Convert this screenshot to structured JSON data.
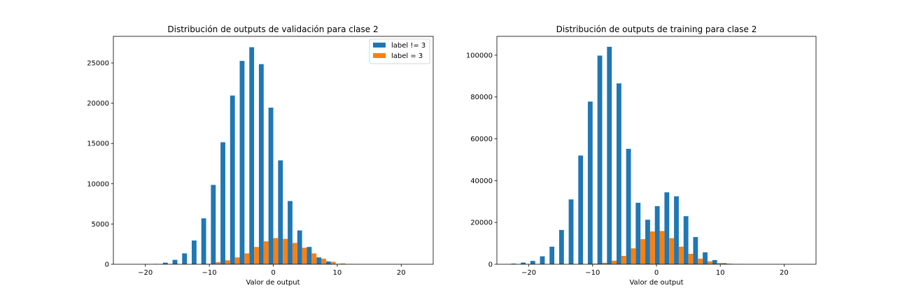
{
  "chart_data": [
    {
      "type": "bar",
      "title": "Distribución de outputs de validación para clase 2",
      "xlabel": "Valor de output",
      "ylabel": "",
      "xlim": [
        -25,
        25
      ],
      "ylim": [
        0,
        28300
      ],
      "xticks": [
        -20,
        -10,
        0,
        10,
        20
      ],
      "yticks": [
        0,
        5000,
        10000,
        15000,
        20000,
        25000
      ],
      "bin_width": 1.5,
      "legend": {
        "position": "top-right"
      },
      "series": [
        {
          "name": "label != 3",
          "color": "#1f77b4",
          "x": [
            -18,
            -16.5,
            -15,
            -13.5,
            -12,
            -10.5,
            -9,
            -7.5,
            -6,
            -4.5,
            -3,
            -1.5,
            0,
            1.5,
            3,
            4.5,
            6,
            7.5,
            9,
            10.5
          ],
          "values": [
            40,
            200,
            550,
            1350,
            2950,
            5700,
            9850,
            15150,
            20950,
            25250,
            26950,
            24850,
            19450,
            12900,
            7850,
            4200,
            2150,
            850,
            350,
            50
          ]
        },
        {
          "name": "label = 3",
          "color": "#ff7f0e",
          "x": [
            -12,
            -10.5,
            -9,
            -7.5,
            -6,
            -4.5,
            -3,
            -1.5,
            0,
            1.5,
            3,
            4.5,
            6,
            7.5,
            9,
            10.5,
            12
          ],
          "values": [
            20,
            60,
            250,
            500,
            850,
            1350,
            2150,
            2850,
            3250,
            3150,
            2650,
            2050,
            1350,
            700,
            300,
            100,
            30
          ]
        }
      ]
    },
    {
      "type": "bar",
      "title": "Distribución de outputs de training para clase 2",
      "xlabel": "Valor de output",
      "ylabel": "",
      "xlim": [
        -25,
        25
      ],
      "ylim": [
        0,
        109000
      ],
      "xticks": [
        -20,
        -10,
        0,
        10,
        20
      ],
      "yticks": [
        0,
        20000,
        40000,
        60000,
        80000,
        100000
      ],
      "bin_width": 1.5,
      "series": [
        {
          "color": "#1f77b4",
          "x": [
            -22,
            -20.5,
            -19,
            -17.5,
            -16,
            -14.5,
            -13,
            -11.5,
            -10,
            -8.5,
            -7,
            -5.5,
            -4,
            -2.5,
            -1,
            0.5,
            2,
            3.5,
            5,
            6.5,
            8,
            9.5,
            11,
            12.5
          ],
          "values": [
            300,
            800,
            1600,
            3800,
            8400,
            16400,
            31000,
            52000,
            77800,
            99800,
            104000,
            86500,
            55200,
            29400,
            21300,
            27800,
            34400,
            32500,
            23000,
            13000,
            5700,
            2000,
            500,
            100
          ]
        },
        {
          "color": "#ff7f0e",
          "x": [
            -10,
            -8.5,
            -7,
            -5.5,
            -4,
            -2.5,
            -1,
            0.5,
            2,
            3.5,
            5,
            6.5,
            8,
            9.5,
            11,
            12.5
          ],
          "values": [
            300,
            700,
            1700,
            4000,
            7600,
            12000,
            15700,
            15900,
            12500,
            8400,
            5000,
            2700,
            1400,
            600,
            300,
            100
          ]
        }
      ]
    }
  ]
}
